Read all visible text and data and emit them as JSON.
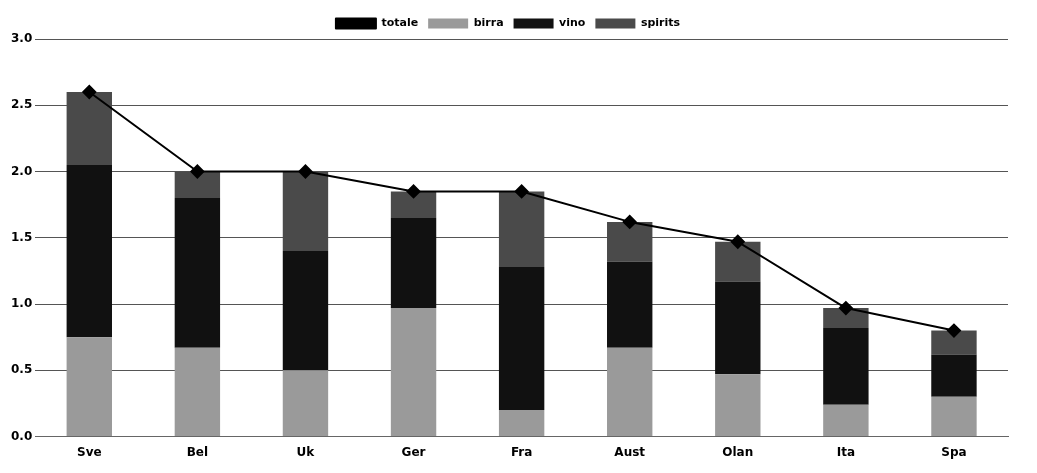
{
  "chart_data": {
    "type": "bar",
    "stacked": true,
    "categories": [
      "Sve",
      "Bel",
      "Uk",
      "Ger",
      "Fra",
      "Aust",
      "Olan",
      "Ita",
      "Spa"
    ],
    "series": [
      {
        "name": "birra",
        "color": "#9a9a9a",
        "values": [
          0.75,
          0.67,
          0.5,
          0.97,
          0.2,
          0.67,
          0.47,
          0.24,
          0.3
        ]
      },
      {
        "name": "vino",
        "color": "#111111",
        "values": [
          1.3,
          1.13,
          0.9,
          0.68,
          1.08,
          0.65,
          0.7,
          0.58,
          0.32
        ]
      },
      {
        "name": "spirits",
        "color": "#4a4a4a",
        "values": [
          0.55,
          0.2,
          0.6,
          0.2,
          0.57,
          0.3,
          0.3,
          0.15,
          0.18
        ]
      },
      {
        "name": "totale",
        "type": "line",
        "color": "#000000",
        "marker": "diamond",
        "values": [
          2.6,
          2.0,
          2.0,
          1.85,
          1.85,
          1.62,
          1.47,
          0.97,
          0.8
        ]
      }
    ],
    "ylim": [
      0,
      3
    ],
    "yticks": [
      {
        "value": 0,
        "label": "0.0"
      },
      {
        "value": 0.5,
        "label": "0.5"
      },
      {
        "value": 1,
        "label": "1.0"
      },
      {
        "value": 1.5,
        "label": "1.5"
      },
      {
        "value": 2,
        "label": "2.0"
      },
      {
        "value": 2.5,
        "label": "2.5"
      },
      {
        "value": 3,
        "label": "3.0"
      }
    ],
    "grid": "y",
    "legend": "top"
  }
}
